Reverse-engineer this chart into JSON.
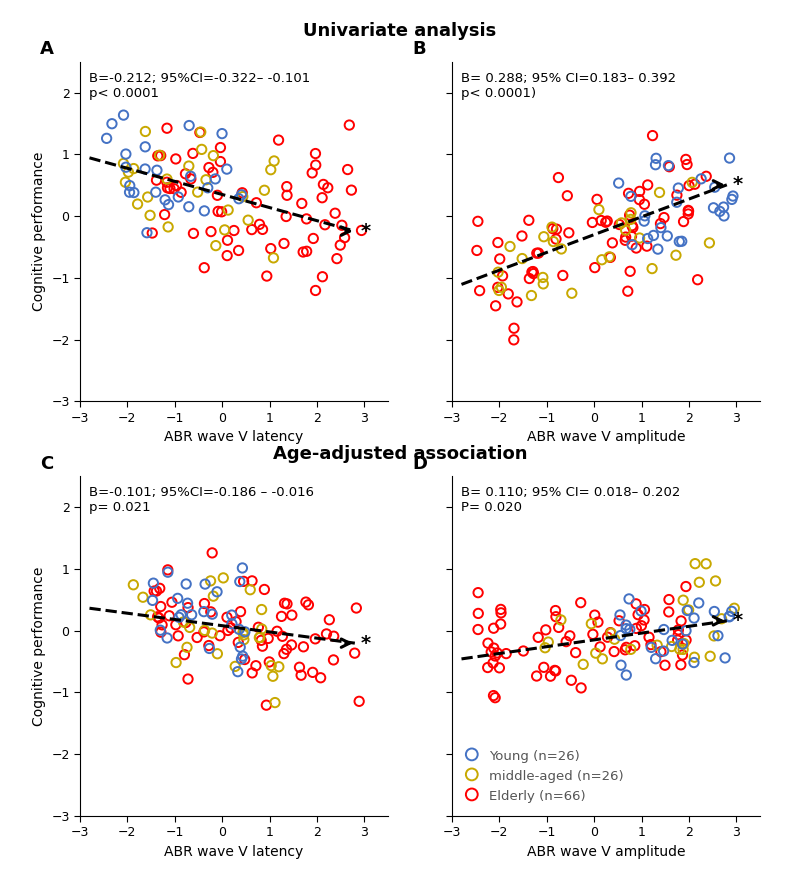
{
  "title_top": "Univariate analysis",
  "title_mid": "Age-adjusted association",
  "panel_labels": [
    "A",
    "B",
    "C",
    "D"
  ],
  "xlabels": [
    "ABR wave V latency",
    "ABR wave V amplitude",
    "ABR wave V latency",
    "ABR wave V amplitude"
  ],
  "ylabel": "Cognitive performance",
  "annotations": [
    "B=-0.212; 95%CI=-0.322– -0.101\np< 0.0001",
    "B= 0.288; 95% CI=0.183– 0.392\np< 0.0001)",
    "B=-0.101; 95%CI=-0.186 – -0.016\np= 0.021",
    "B= 0.110; 95% CI= 0.018– 0.202\nP= 0.020"
  ],
  "slopes": [
    -0.212,
    0.288,
    -0.101,
    0.11
  ],
  "intercepts": [
    0.35,
    -0.3,
    0.08,
    -0.15
  ],
  "xlim": [
    -3,
    3.5
  ],
  "ylim": [
    -3,
    2.5
  ],
  "yticks": [
    -3,
    -2,
    -1,
    0,
    1,
    2
  ],
  "xticks": [
    -3,
    -2,
    -1,
    0,
    1,
    2,
    3
  ],
  "colors": {
    "young": "#4472C4",
    "middle": "#C8A800",
    "elderly": "#FF0000"
  },
  "legend_labels": [
    "Young (n=26)",
    "middle-aged (n=26)",
    "Elderly (n=66)"
  ],
  "background_color": "#FFFFFF",
  "title_fontsize": 13,
  "label_fontsize": 10,
  "annot_fontsize": 9.5,
  "panel_label_fontsize": 13,
  "marker_size": 45,
  "marker_lw": 1.4
}
